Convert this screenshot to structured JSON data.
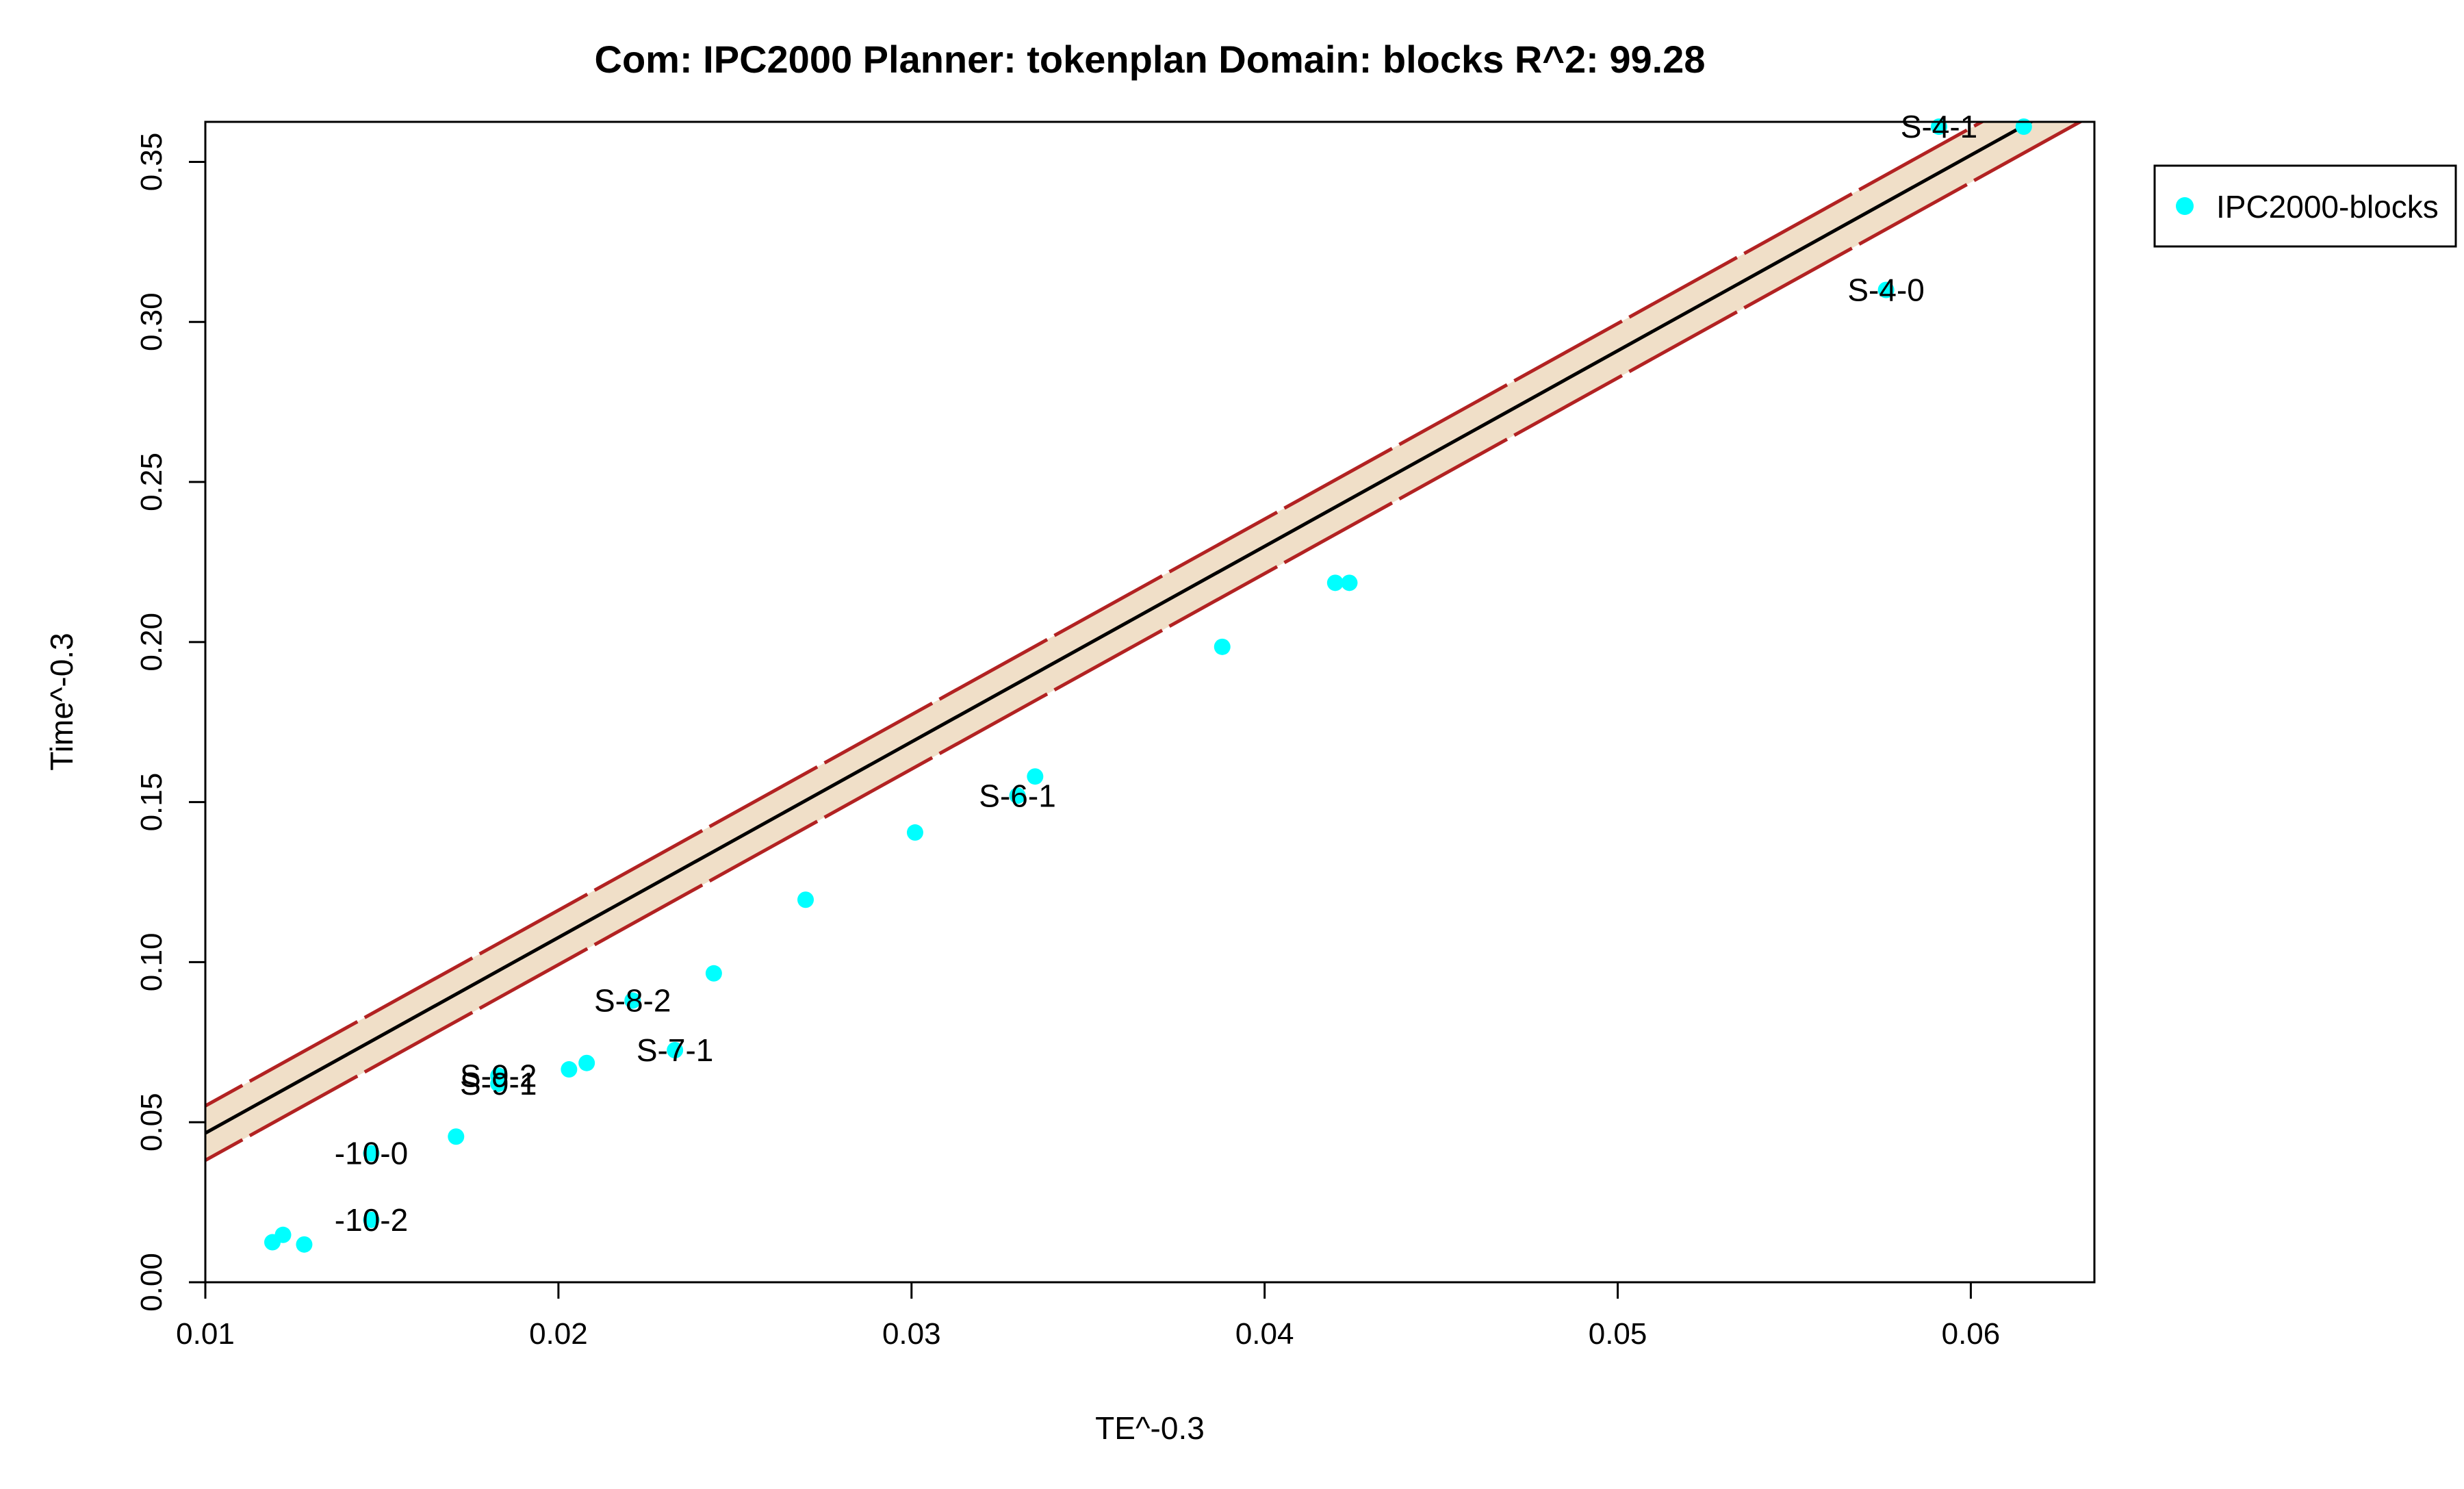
{
  "chart_data": {
    "type": "scatter",
    "title": "Com: IPC2000 Planner: tokenplan Domain: blocks R^2: 99.28",
    "xlabel": "TE^-0.3",
    "ylabel": "Time^-0.3",
    "xlim": [
      0.01,
      0.0635
    ],
    "ylim": [
      0.0,
      0.3625
    ],
    "x_ticks": [
      "0.01",
      "0.02",
      "0.03",
      "0.04",
      "0.05",
      "0.06"
    ],
    "y_ticks": [
      "0.00",
      "0.05",
      "0.10",
      "0.15",
      "0.20",
      "0.25",
      "0.30",
      "0.35"
    ],
    "legend": {
      "position": "right",
      "entries": [
        "IPC2000-blocks"
      ]
    },
    "colors": {
      "points": "#00ffff",
      "fit_line": "#000000",
      "band_fill": "#f0dfc8",
      "band_edge": "#b22222"
    },
    "fit": {
      "intercept": -0.0145,
      "slope": 6.11,
      "band_halfwidth": 0.0085
    },
    "series": [
      {
        "name": "IPC2000-blocks",
        "points": [
          {
            "x": 0.0119,
            "y": 0.0125
          },
          {
            "x": 0.0122,
            "y": 0.0148
          },
          {
            "x": 0.0128,
            "y": 0.0118
          },
          {
            "x": 0.0147,
            "y": 0.0403,
            "label": "-10-0"
          },
          {
            "x": 0.0147,
            "y": 0.0195,
            "label": "-10-2"
          },
          {
            "x": 0.0171,
            "y": 0.0455
          },
          {
            "x": 0.0183,
            "y": 0.0645,
            "label": "S-9-2"
          },
          {
            "x": 0.0183,
            "y": 0.062,
            "label": "S-9-1"
          },
          {
            "x": 0.0203,
            "y": 0.0665
          },
          {
            "x": 0.0208,
            "y": 0.0685
          },
          {
            "x": 0.0221,
            "y": 0.088,
            "label": "S-8-2"
          },
          {
            "x": 0.0233,
            "y": 0.0725,
            "label": "S-7-1"
          },
          {
            "x": 0.0244,
            "y": 0.0965
          },
          {
            "x": 0.027,
            "y": 0.1195
          },
          {
            "x": 0.0301,
            "y": 0.1405
          },
          {
            "x": 0.033,
            "y": 0.152,
            "label": "S-6-1"
          },
          {
            "x": 0.0335,
            "y": 0.158
          },
          {
            "x": 0.0388,
            "y": 0.1985
          },
          {
            "x": 0.042,
            "y": 0.2185
          },
          {
            "x": 0.0424,
            "y": 0.2185
          },
          {
            "x": 0.0576,
            "y": 0.31,
            "label": "S-4-0"
          },
          {
            "x": 0.0591,
            "y": 0.361,
            "label": "S-4-1"
          },
          {
            "x": 0.0615,
            "y": 0.361
          }
        ]
      }
    ]
  }
}
